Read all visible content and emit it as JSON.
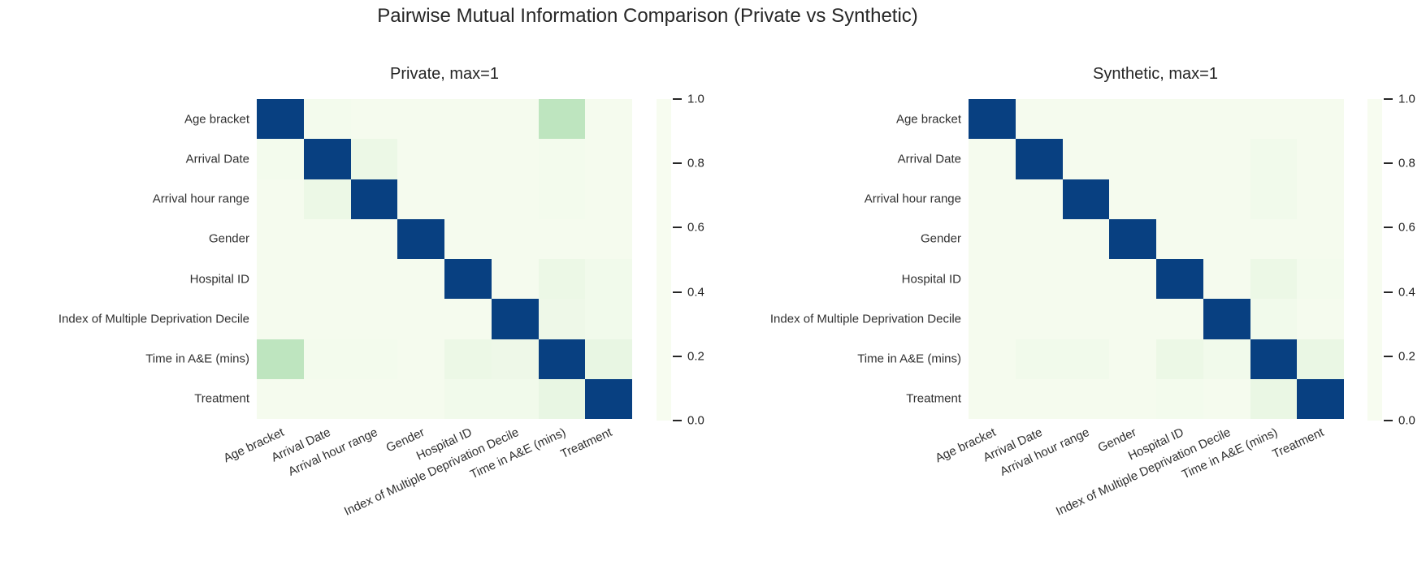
{
  "suptitle": "Pairwise Mutual Information Comparison (Private vs Synthetic)",
  "colors": {
    "colormap_name": "GnBu",
    "colormap_stops": [
      "#f7fcf0",
      "#e0f3db",
      "#ccebc5",
      "#a8ddb5",
      "#7bccc4",
      "#4eb3d3",
      "#2b8cbe",
      "#0868ac",
      "#084081"
    ],
    "diagonal": "#084081",
    "text": "#262626"
  },
  "chart_data": [
    {
      "type": "heatmap",
      "title": "Private, max=1",
      "categories": [
        "Age bracket",
        "Arrival Date",
        "Arrival hour range",
        "Gender",
        "Hospital ID",
        "Index of Multiple Deprivation Decile",
        "Time in A&E (mins)",
        "Treatment"
      ],
      "matrix": [
        [
          1.0,
          0.02,
          0.01,
          0.01,
          0.01,
          0.01,
          0.3,
          0.01
        ],
        [
          0.02,
          1.0,
          0.06,
          0.01,
          0.01,
          0.01,
          0.02,
          0.01
        ],
        [
          0.01,
          0.06,
          1.0,
          0.01,
          0.01,
          0.01,
          0.02,
          0.01
        ],
        [
          0.01,
          0.01,
          0.01,
          1.0,
          0.01,
          0.01,
          0.01,
          0.01
        ],
        [
          0.01,
          0.01,
          0.01,
          0.01,
          1.0,
          0.01,
          0.06,
          0.03
        ],
        [
          0.01,
          0.01,
          0.01,
          0.01,
          0.01,
          1.0,
          0.05,
          0.03
        ],
        [
          0.3,
          0.02,
          0.02,
          0.01,
          0.06,
          0.05,
          1.0,
          0.08
        ],
        [
          0.01,
          0.01,
          0.01,
          0.01,
          0.03,
          0.03,
          0.08,
          1.0
        ]
      ],
      "vmin": 0.0,
      "vmax": 1.0,
      "colorbar_ticks": [
        "1.0",
        "0.8",
        "0.6",
        "0.4",
        "0.2",
        "0.0"
      ]
    },
    {
      "type": "heatmap",
      "title": "Synthetic, max=1",
      "categories": [
        "Age bracket",
        "Arrival Date",
        "Arrival hour range",
        "Gender",
        "Hospital ID",
        "Index of Multiple Deprivation Decile",
        "Time in A&E (mins)",
        "Treatment"
      ],
      "matrix": [
        [
          1.0,
          0.01,
          0.01,
          0.01,
          0.01,
          0.01,
          0.01,
          0.01
        ],
        [
          0.01,
          1.0,
          0.01,
          0.01,
          0.01,
          0.01,
          0.03,
          0.01
        ],
        [
          0.01,
          0.01,
          1.0,
          0.01,
          0.01,
          0.01,
          0.03,
          0.01
        ],
        [
          0.01,
          0.01,
          0.01,
          1.0,
          0.01,
          0.01,
          0.01,
          0.01
        ],
        [
          0.01,
          0.01,
          0.01,
          0.01,
          1.0,
          0.01,
          0.06,
          0.02
        ],
        [
          0.01,
          0.01,
          0.01,
          0.01,
          0.01,
          1.0,
          0.03,
          0.01
        ],
        [
          0.01,
          0.03,
          0.03,
          0.01,
          0.06,
          0.03,
          1.0,
          0.07
        ],
        [
          0.01,
          0.01,
          0.01,
          0.01,
          0.02,
          0.01,
          0.07,
          1.0
        ]
      ],
      "vmin": 0.0,
      "vmax": 1.0,
      "colorbar_ticks": [
        "1.0",
        "0.8",
        "0.6",
        "0.4",
        "0.2",
        "0.0"
      ]
    }
  ]
}
